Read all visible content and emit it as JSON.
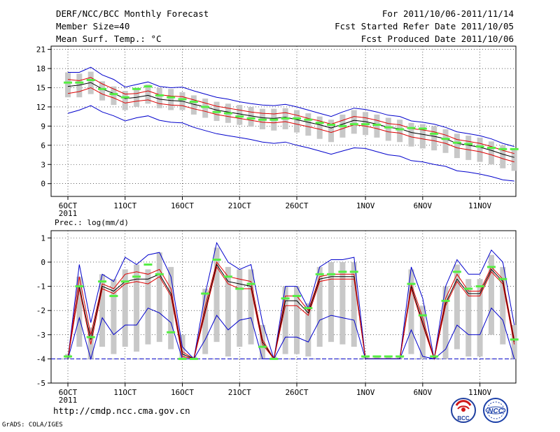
{
  "header": {
    "title": "DERF/NCC/BCC Monthly Forecast",
    "member_size": "Member Size=40",
    "variable": "Mean Surf. Temp.: °C",
    "period": "For 2011/10/06-2011/11/14",
    "start_date": "Fcst Started Refer Date 2011/10/05",
    "produced_date": "Fcst Produced Date 2011/10/06"
  },
  "footer": {
    "url": "http://cmdp.ncc.cma.gov.cn",
    "credit": "GrADS: COLA/IGES",
    "logo_left": "BCC",
    "logo_right": "NCC"
  },
  "colors": {
    "envelope": "#0000cc",
    "inner": "#dd0000",
    "ensemble_mean": "#000000",
    "median": "#00aa00",
    "box": "#c8c8c8",
    "mode_bar": "#55ee44"
  },
  "chart_data": [
    {
      "type": "line",
      "title": "Mean Surf. Temp.: °C",
      "x_tick_labels": [
        "6OCT",
        "11OCT",
        "16OCT",
        "21OCT",
        "26OCT",
        "1NOV",
        "6NOV",
        "11NOV"
      ],
      "x_tick_days": [
        0,
        5,
        10,
        15,
        20,
        26,
        31,
        36
      ],
      "year_label": "2011",
      "xlim": [
        -0.5,
        39.5
      ],
      "ylim": [
        -2,
        21.5
      ],
      "yticks": [
        0,
        3,
        6,
        9,
        12,
        15,
        18,
        21
      ],
      "series": [
        {
          "name": "ensemble max",
          "values": [
            17.4,
            17.4,
            18.2,
            17.0,
            16.3,
            15.1,
            15.5,
            15.9,
            15.2,
            15.0,
            15.1,
            14.5,
            14.0,
            13.5,
            13.2,
            12.8,
            12.5,
            12.3,
            12.2,
            12.4,
            12.0,
            11.5,
            11.0,
            10.5,
            11.2,
            11.8,
            11.6,
            11.2,
            10.7,
            10.5,
            9.8,
            9.6,
            9.3,
            8.8,
            8.1,
            7.8,
            7.5,
            7.0,
            6.3,
            5.8
          ]
        },
        {
          "name": "upper",
          "values": [
            16.3,
            16.1,
            16.6,
            15.6,
            14.8,
            14.0,
            14.1,
            14.5,
            13.9,
            13.7,
            13.6,
            13.1,
            12.6,
            12.1,
            11.8,
            11.5,
            11.2,
            11.0,
            10.9,
            11.1,
            10.7,
            10.2,
            9.8,
            9.3,
            9.9,
            10.5,
            10.3,
            9.9,
            9.4,
            9.2,
            8.6,
            8.4,
            8.1,
            7.6,
            6.9,
            6.6,
            6.3,
            5.8,
            5.2,
            4.7
          ]
        },
        {
          "name": "ensemble mean",
          "values": [
            15.2,
            15.4,
            15.8,
            14.8,
            14.1,
            13.3,
            13.5,
            13.8,
            13.2,
            13.0,
            12.9,
            12.4,
            12.0,
            11.5,
            11.2,
            10.9,
            10.6,
            10.3,
            10.2,
            10.4,
            10.0,
            9.6,
            9.2,
            8.7,
            9.3,
            9.9,
            9.7,
            9.3,
            8.8,
            8.6,
            8.0,
            7.7,
            7.4,
            7.0,
            6.3,
            6.0,
            5.7,
            5.2,
            4.6,
            4.1
          ]
        },
        {
          "name": "lower",
          "values": [
            14.1,
            14.4,
            15.0,
            14.0,
            13.4,
            12.6,
            12.9,
            13.1,
            12.5,
            12.3,
            12.2,
            11.7,
            11.3,
            10.8,
            10.5,
            10.2,
            9.9,
            9.6,
            9.5,
            9.7,
            9.3,
            8.9,
            8.5,
            8.0,
            8.6,
            9.2,
            9.0,
            8.6,
            8.1,
            7.9,
            7.3,
            7.0,
            6.7,
            6.3,
            5.6,
            5.3,
            5.0,
            4.5,
            3.9,
            3.4
          ]
        },
        {
          "name": "ensemble min",
          "values": [
            11.0,
            11.5,
            12.2,
            11.2,
            10.6,
            9.8,
            10.3,
            10.6,
            9.9,
            9.6,
            9.5,
            8.8,
            8.3,
            7.8,
            7.5,
            7.2,
            6.9,
            6.5,
            6.3,
            6.5,
            6.0,
            5.6,
            5.1,
            4.6,
            5.1,
            5.6,
            5.5,
            5.0,
            4.5,
            4.3,
            3.6,
            3.4,
            3.0,
            2.7,
            2.0,
            1.8,
            1.5,
            1.1,
            0.6,
            0.4
          ]
        }
      ],
      "box_ranges": [
        [
          13.5,
          17.4
        ],
        [
          13.5,
          17.2
        ],
        [
          14.0,
          17.5
        ],
        [
          13.0,
          16.0
        ],
        [
          12.3,
          15.2
        ],
        [
          11.5,
          14.5
        ],
        [
          12.0,
          15.0
        ],
        [
          12.5,
          15.5
        ],
        [
          11.8,
          15.0
        ],
        [
          11.5,
          14.8
        ],
        [
          11.5,
          14.3
        ],
        [
          10.8,
          13.8
        ],
        [
          10.3,
          13.3
        ],
        [
          9.8,
          12.8
        ],
        [
          9.5,
          12.5
        ],
        [
          9.2,
          12.3
        ],
        [
          8.9,
          12.0
        ],
        [
          8.5,
          11.7
        ],
        [
          8.3,
          11.7
        ],
        [
          8.5,
          11.8
        ],
        [
          8.0,
          11.5
        ],
        [
          7.5,
          11.0
        ],
        [
          7.0,
          10.5
        ],
        [
          6.5,
          10.0
        ],
        [
          7.2,
          10.8
        ],
        [
          7.8,
          11.5
        ],
        [
          7.6,
          11.2
        ],
        [
          7.2,
          10.8
        ],
        [
          6.7,
          10.3
        ],
        [
          6.5,
          10.0
        ],
        [
          5.8,
          9.5
        ],
        [
          5.5,
          9.3
        ],
        [
          5.2,
          9.0
        ],
        [
          4.8,
          8.5
        ],
        [
          4.0,
          7.8
        ],
        [
          3.7,
          7.5
        ],
        [
          3.4,
          7.2
        ],
        [
          3.0,
          6.6
        ],
        [
          2.4,
          6.0
        ],
        [
          2.0,
          5.5
        ]
      ],
      "mode_values": [
        15.8,
        15.8,
        16.2,
        14.8,
        14.0,
        13.5,
        14.8,
        15.2,
        13.8,
        13.5,
        13.2,
        12.8,
        12.0,
        11.2,
        11.0,
        10.5,
        10.2,
        10.0,
        10.0,
        10.2,
        10.2,
        10.0,
        9.5,
        9.2,
        9.0,
        9.3,
        9.3,
        9.2,
        8.8,
        8.5,
        8.7,
        8.6,
        7.8,
        7.0,
        6.4,
        6.2,
        5.8,
        5.6,
        5.4,
        5.4
      ]
    },
    {
      "type": "line",
      "title": "Prec.: log(mm/d)",
      "x_tick_labels": [
        "6OCT",
        "11OCT",
        "16OCT",
        "21OCT",
        "26OCT",
        "1NOV",
        "6NOV",
        "11NOV"
      ],
      "x_tick_days": [
        0,
        5,
        10,
        15,
        20,
        26,
        31,
        36
      ],
      "year_label": "2011",
      "xlim": [
        -0.5,
        39.5
      ],
      "ylim": [
        -5,
        1.3
      ],
      "yticks": [
        -5,
        -4,
        -3,
        -2,
        -1,
        0,
        1
      ],
      "series": [
        {
          "name": "ensemble max",
          "values": [
            -4.0,
            -0.1,
            -2.5,
            -0.5,
            -0.8,
            0.2,
            -0.1,
            0.3,
            0.4,
            -0.6,
            -3.5,
            -4.0,
            -1.3,
            0.8,
            0.0,
            -0.3,
            -0.1,
            -2.5,
            -4.0,
            -1.0,
            -1.0,
            -1.9,
            -0.2,
            0.1,
            0.1,
            0.2,
            -4.0,
            -4.0,
            -4.0,
            -4.0,
            -0.2,
            -1.5,
            -4.0,
            -1.0,
            0.1,
            -0.5,
            -0.5,
            0.5,
            0.0,
            -2.6
          ]
        },
        {
          "name": "upper",
          "values": [
            -4.0,
            -0.6,
            -3.0,
            -0.9,
            -1.1,
            -0.5,
            -0.4,
            -0.5,
            -0.3,
            -1.1,
            -3.7,
            -4.0,
            -1.8,
            0.0,
            -0.6,
            -0.7,
            -0.8,
            -3.2,
            -4.0,
            -1.4,
            -1.4,
            -2.0,
            -0.6,
            -0.5,
            -0.5,
            -0.5,
            -4.0,
            -4.0,
            -4.0,
            -4.0,
            -0.9,
            -2.3,
            -4.0,
            -1.5,
            -0.5,
            -1.2,
            -1.2,
            -0.2,
            -0.7,
            -3.2
          ]
        },
        {
          "name": "ensemble mean",
          "values": [
            -4.0,
            -1.0,
            -3.2,
            -1.0,
            -1.2,
            -0.8,
            -0.7,
            -0.7,
            -0.5,
            -1.3,
            -3.8,
            -4.0,
            -2.0,
            -0.1,
            -0.8,
            -0.9,
            -1.0,
            -3.3,
            -4.0,
            -1.6,
            -1.6,
            -2.1,
            -0.7,
            -0.6,
            -0.6,
            -0.6,
            -4.0,
            -4.0,
            -4.0,
            -4.0,
            -1.0,
            -2.5,
            -4.0,
            -1.7,
            -0.7,
            -1.3,
            -1.3,
            -0.3,
            -0.8,
            -3.3
          ]
        },
        {
          "name": "lower",
          "values": [
            -4.0,
            -1.1,
            -3.4,
            -1.1,
            -1.3,
            -0.9,
            -0.8,
            -0.9,
            -0.6,
            -1.4,
            -3.9,
            -4.0,
            -2.1,
            -0.2,
            -0.9,
            -1.1,
            -1.1,
            -3.4,
            -4.0,
            -1.8,
            -1.8,
            -2.2,
            -0.8,
            -0.7,
            -0.7,
            -0.7,
            -4.0,
            -4.0,
            -4.0,
            -4.0,
            -1.1,
            -2.6,
            -4.0,
            -1.8,
            -0.8,
            -1.4,
            -1.4,
            -0.4,
            -0.9,
            -3.4
          ]
        },
        {
          "name": "ensemble min",
          "values": [
            -4.0,
            -2.3,
            -4.0,
            -2.3,
            -3.0,
            -2.6,
            -2.6,
            -1.9,
            -2.1,
            -2.5,
            -4.0,
            -4.0,
            -3.2,
            -2.2,
            -2.8,
            -2.4,
            -2.3,
            -4.0,
            -4.0,
            -3.1,
            -3.1,
            -3.3,
            -2.4,
            -2.2,
            -2.3,
            -2.4,
            -4.0,
            -4.0,
            -4.0,
            -4.0,
            -2.8,
            -3.9,
            -4.0,
            -3.6,
            -2.6,
            -3.0,
            -3.0,
            -1.9,
            -2.4,
            -4.0
          ]
        }
      ],
      "box_ranges": [
        [
          -4.0,
          -3.8
        ],
        [
          -3.5,
          -0.6
        ],
        [
          -4.0,
          -2.7
        ],
        [
          -3.5,
          -0.5
        ],
        [
          -3.8,
          -0.7
        ],
        [
          -3.5,
          -0.3
        ],
        [
          -3.7,
          -0.1
        ],
        [
          -3.4,
          -0.3
        ],
        [
          -3.3,
          0.4
        ],
        [
          -3.6,
          -0.2
        ],
        [
          -4.0,
          -3.0
        ],
        [
          -4.0,
          -3.9
        ],
        [
          -3.8,
          -1.1
        ],
        [
          -3.3,
          0.6
        ],
        [
          -3.9,
          -0.2
        ],
        [
          -3.5,
          -0.3
        ],
        [
          -3.4,
          -0.3
        ],
        [
          -4.0,
          -2.6
        ],
        [
          -4.0,
          -3.9
        ],
        [
          -3.8,
          -1.0
        ],
        [
          -3.8,
          -1.0
        ],
        [
          -3.9,
          -1.7
        ],
        [
          -3.5,
          -0.2
        ],
        [
          -3.3,
          0.0
        ],
        [
          -3.4,
          0.0
        ],
        [
          -3.5,
          0.0
        ],
        [
          -4.0,
          -3.9
        ],
        [
          -4.0,
          -3.9
        ],
        [
          -4.0,
          -3.9
        ],
        [
          -4.0,
          -3.9
        ],
        [
          -3.8,
          -0.3
        ],
        [
          -4.0,
          -1.8
        ],
        [
          -4.0,
          -3.9
        ],
        [
          -4.0,
          -1.0
        ],
        [
          -3.6,
          -0.1
        ],
        [
          -3.9,
          -0.7
        ],
        [
          -3.9,
          -0.7
        ],
        [
          -3.0,
          0.3
        ],
        [
          -3.4,
          -0.2
        ],
        [
          -4.0,
          -2.6
        ]
      ],
      "mode_values": [
        -3.9,
        -1.0,
        -3.1,
        -0.8,
        -1.4,
        -0.8,
        -0.6,
        -0.1,
        -0.5,
        -2.9,
        -4.0,
        -4.0,
        -1.3,
        0.1,
        -0.6,
        -1.1,
        -0.9,
        -3.5,
        -4.0,
        -1.5,
        -1.4,
        -1.9,
        -0.5,
        -0.5,
        -0.4,
        -0.4,
        -3.9,
        -3.9,
        -3.9,
        -3.9,
        -0.9,
        -2.2,
        -3.9,
        -1.6,
        -0.4,
        -1.1,
        -1.0,
        -0.2,
        -0.7,
        -3.2
      ]
    }
  ]
}
